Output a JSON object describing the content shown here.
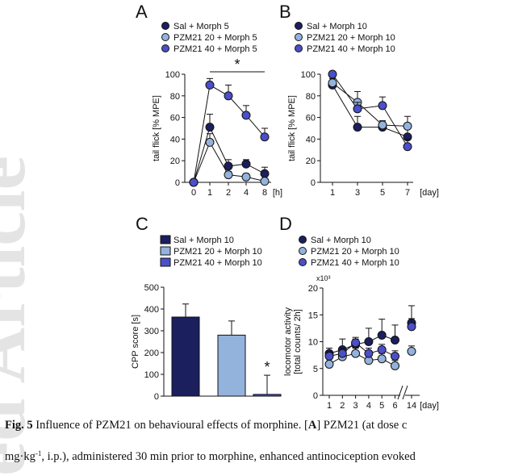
{
  "watermark": "ed Article",
  "chart_data": [
    {
      "type": "line",
      "title": "A",
      "ylabel": "tail flick [% MPE]",
      "x_unit": "[h]",
      "categories": [
        "0",
        "1",
        "2",
        "4",
        "8"
      ],
      "ylim": [
        0,
        100
      ],
      "yticks": [
        0,
        20,
        40,
        60,
        80,
        100
      ],
      "grid": false,
      "annotations": [
        "*"
      ],
      "series": [
        {
          "name": "Sal + Morph 5",
          "color": "#1b1f5e",
          "values": [
            0,
            51,
            15,
            17,
            8
          ],
          "errors": [
            0,
            12,
            6,
            4,
            6
          ]
        },
        {
          "name": "PZM21 20 + Morph 5",
          "color": "#93b3dc",
          "values": [
            0,
            37,
            7,
            5,
            1
          ],
          "errors": [
            0,
            8,
            3,
            3,
            2
          ]
        },
        {
          "name": "PZM21 40  + Morph 5",
          "color": "#4b4fc9",
          "values": [
            0,
            90,
            80,
            62,
            42
          ],
          "errors": [
            0,
            6,
            10,
            9,
            8
          ]
        }
      ]
    },
    {
      "type": "line",
      "title": "B",
      "ylabel": "tail flick [% MPE]",
      "x_unit": "[day]",
      "categories": [
        "1",
        "3",
        "5",
        "7"
      ],
      "ylim": [
        0,
        100
      ],
      "yticks": [
        0,
        20,
        40,
        60,
        80,
        100
      ],
      "grid": false,
      "series": [
        {
          "name": "Sal + Morph 10",
          "color": "#1b1f5e",
          "values": [
            90,
            51,
            51,
            42
          ],
          "errors": [
            4,
            10,
            5,
            8
          ]
        },
        {
          "name": "PZM21 20 + Morph 10",
          "color": "#93b3dc",
          "values": [
            92,
            74,
            53,
            52
          ],
          "errors": [
            4,
            10,
            4,
            9
          ]
        },
        {
          "name": "PZM21 40 + Morph 10",
          "color": "#4b4fc9",
          "values": [
            100,
            68,
            71,
            33
          ],
          "errors": [
            2,
            6,
            8,
            7
          ]
        }
      ]
    },
    {
      "type": "bar",
      "title": "C",
      "ylabel": "CPP score [s]",
      "ylim": [
        0,
        500
      ],
      "yticks": [
        0,
        100,
        200,
        300,
        400,
        500
      ],
      "grid": false,
      "annotations": [
        "*"
      ],
      "series": [
        {
          "name": "Sal + Morph 10",
          "color": "#1b1f5e",
          "values": [
            363
          ],
          "errors": [
            60
          ]
        },
        {
          "name": "PZM21 20 + Morph 10",
          "color": "#93b3dc",
          "values": [
            280
          ],
          "errors": [
            65
          ]
        },
        {
          "name": "PZM21 40 + Morph 10",
          "color": "#4b4fc9",
          "values": [
            8
          ],
          "errors": [
            88
          ]
        }
      ]
    },
    {
      "type": "line",
      "title": "D",
      "ylabel": [
        "locomotor activity",
        "[total counts/ 2h]"
      ],
      "y_multiplier": "x10³",
      "x_unit": "[day]",
      "categories": [
        "1",
        "2",
        "3",
        "4",
        "5",
        "6",
        "14"
      ],
      "axis_break": true,
      "ylim": [
        0,
        20
      ],
      "yticks": [
        0,
        5,
        10,
        15,
        20
      ],
      "grid": false,
      "series": [
        {
          "name": "Sal + Morph 10",
          "color": "#1b1f5e",
          "values": [
            7.8,
            8.5,
            9.5,
            10,
            11.2,
            10.3,
            13.5
          ],
          "errors": [
            1,
            2,
            1,
            2.5,
            3,
            2.8,
            3.2
          ]
        },
        {
          "name": "PZM21 20 + Morph 10",
          "color": "#93b3dc",
          "values": [
            5.8,
            7.2,
            7.8,
            6.5,
            6.8,
            5.5,
            8.2
          ],
          "errors": [
            1,
            1,
            1,
            1,
            1,
            1,
            1
          ]
        },
        {
          "name": "PZM21 40 + Morph 10",
          "color": "#4b4fc9",
          "values": [
            7.3,
            7.8,
            9.8,
            7.8,
            8.5,
            7.3,
            12.8
          ],
          "errors": [
            0.8,
            1,
            1,
            1,
            1,
            1,
            1.5
          ]
        }
      ]
    }
  ],
  "caption": {
    "label": "Fig. 5",
    "text1": " Influence of PZM21 on behavioural effects of morphine. [",
    "panel": "A",
    "text2": "] PZM21 (at dose c",
    "line2_a": "mg·kg",
    "line2_sup": "-1",
    "line2_b": ", i.p.), administered 30 min prior to morphine, enhanced antinociception evoked"
  }
}
